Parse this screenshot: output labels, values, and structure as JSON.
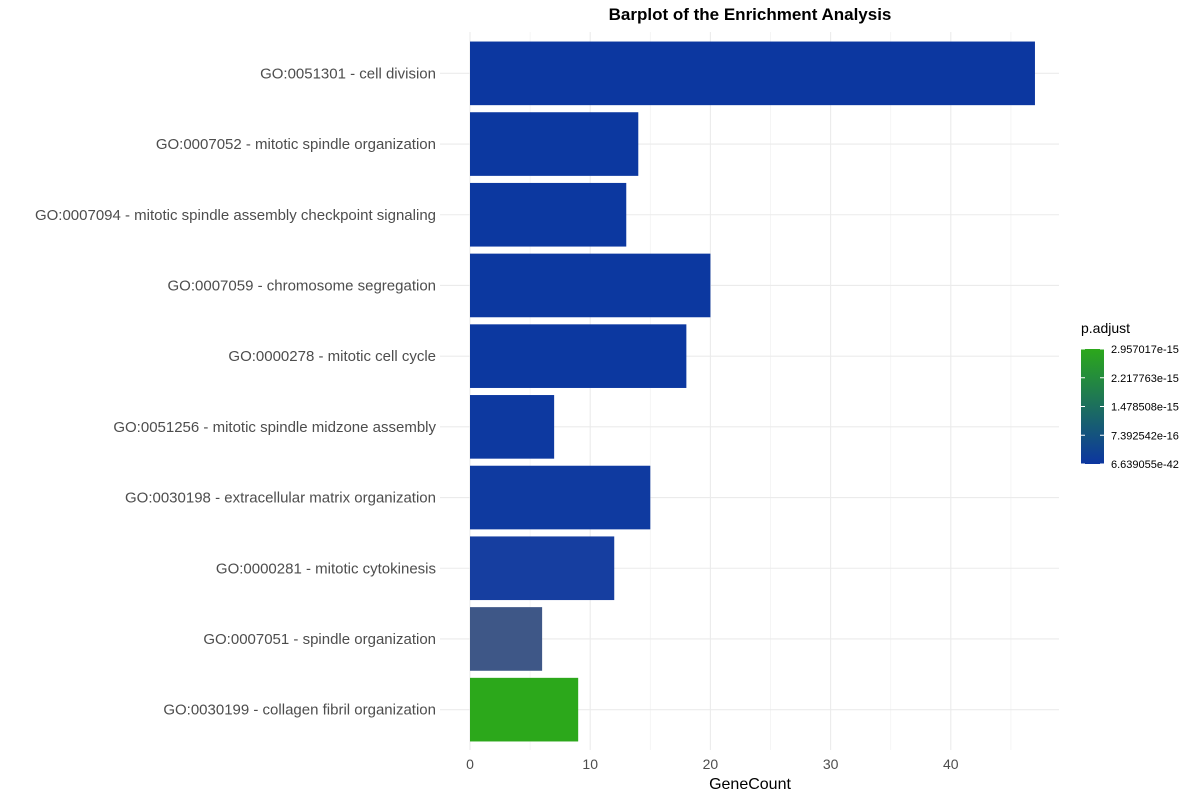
{
  "chart_data": {
    "type": "bar",
    "orientation": "horizontal",
    "title": "Barplot of the Enrichment Analysis",
    "xlabel": "GeneCount",
    "ylabel": "",
    "xlim": [
      0,
      49
    ],
    "x_ticks": [
      0,
      10,
      20,
      30,
      40
    ],
    "grid": true,
    "categories": [
      "GO:0051301 - cell division",
      "GO:0007052 - mitotic spindle organization",
      "GO:0007094 - mitotic spindle assembly checkpoint signaling",
      "GO:0007059 - chromosome segregation",
      "GO:0000278 - mitotic cell cycle",
      "GO:0051256 - mitotic spindle midzone assembly",
      "GO:0030198 - extracellular matrix organization",
      "GO:0000281 - mitotic cytokinesis",
      "GO:0007051 - spindle organization",
      "GO:0030199 - collagen fibril organization"
    ],
    "values": [
      47,
      14,
      13,
      20,
      18,
      7,
      15,
      12,
      6,
      9
    ],
    "bar_colors": [
      "#0c37a0",
      "#0c38a0",
      "#0c38a0",
      "#0c38a0",
      "#0c38a0",
      "#0d39a0",
      "#0f3aa0",
      "#163ea0",
      "#3e5787",
      "#2ca81b"
    ],
    "legend": {
      "title": "p.adjust",
      "placement": "right",
      "labels": [
        "2.957017e-15",
        "2.217763e-15",
        "1.478508e-15",
        "7.392542e-16",
        "6.639055e-42"
      ],
      "gradient": [
        "#2ca81b",
        "#0c36a0"
      ]
    }
  }
}
